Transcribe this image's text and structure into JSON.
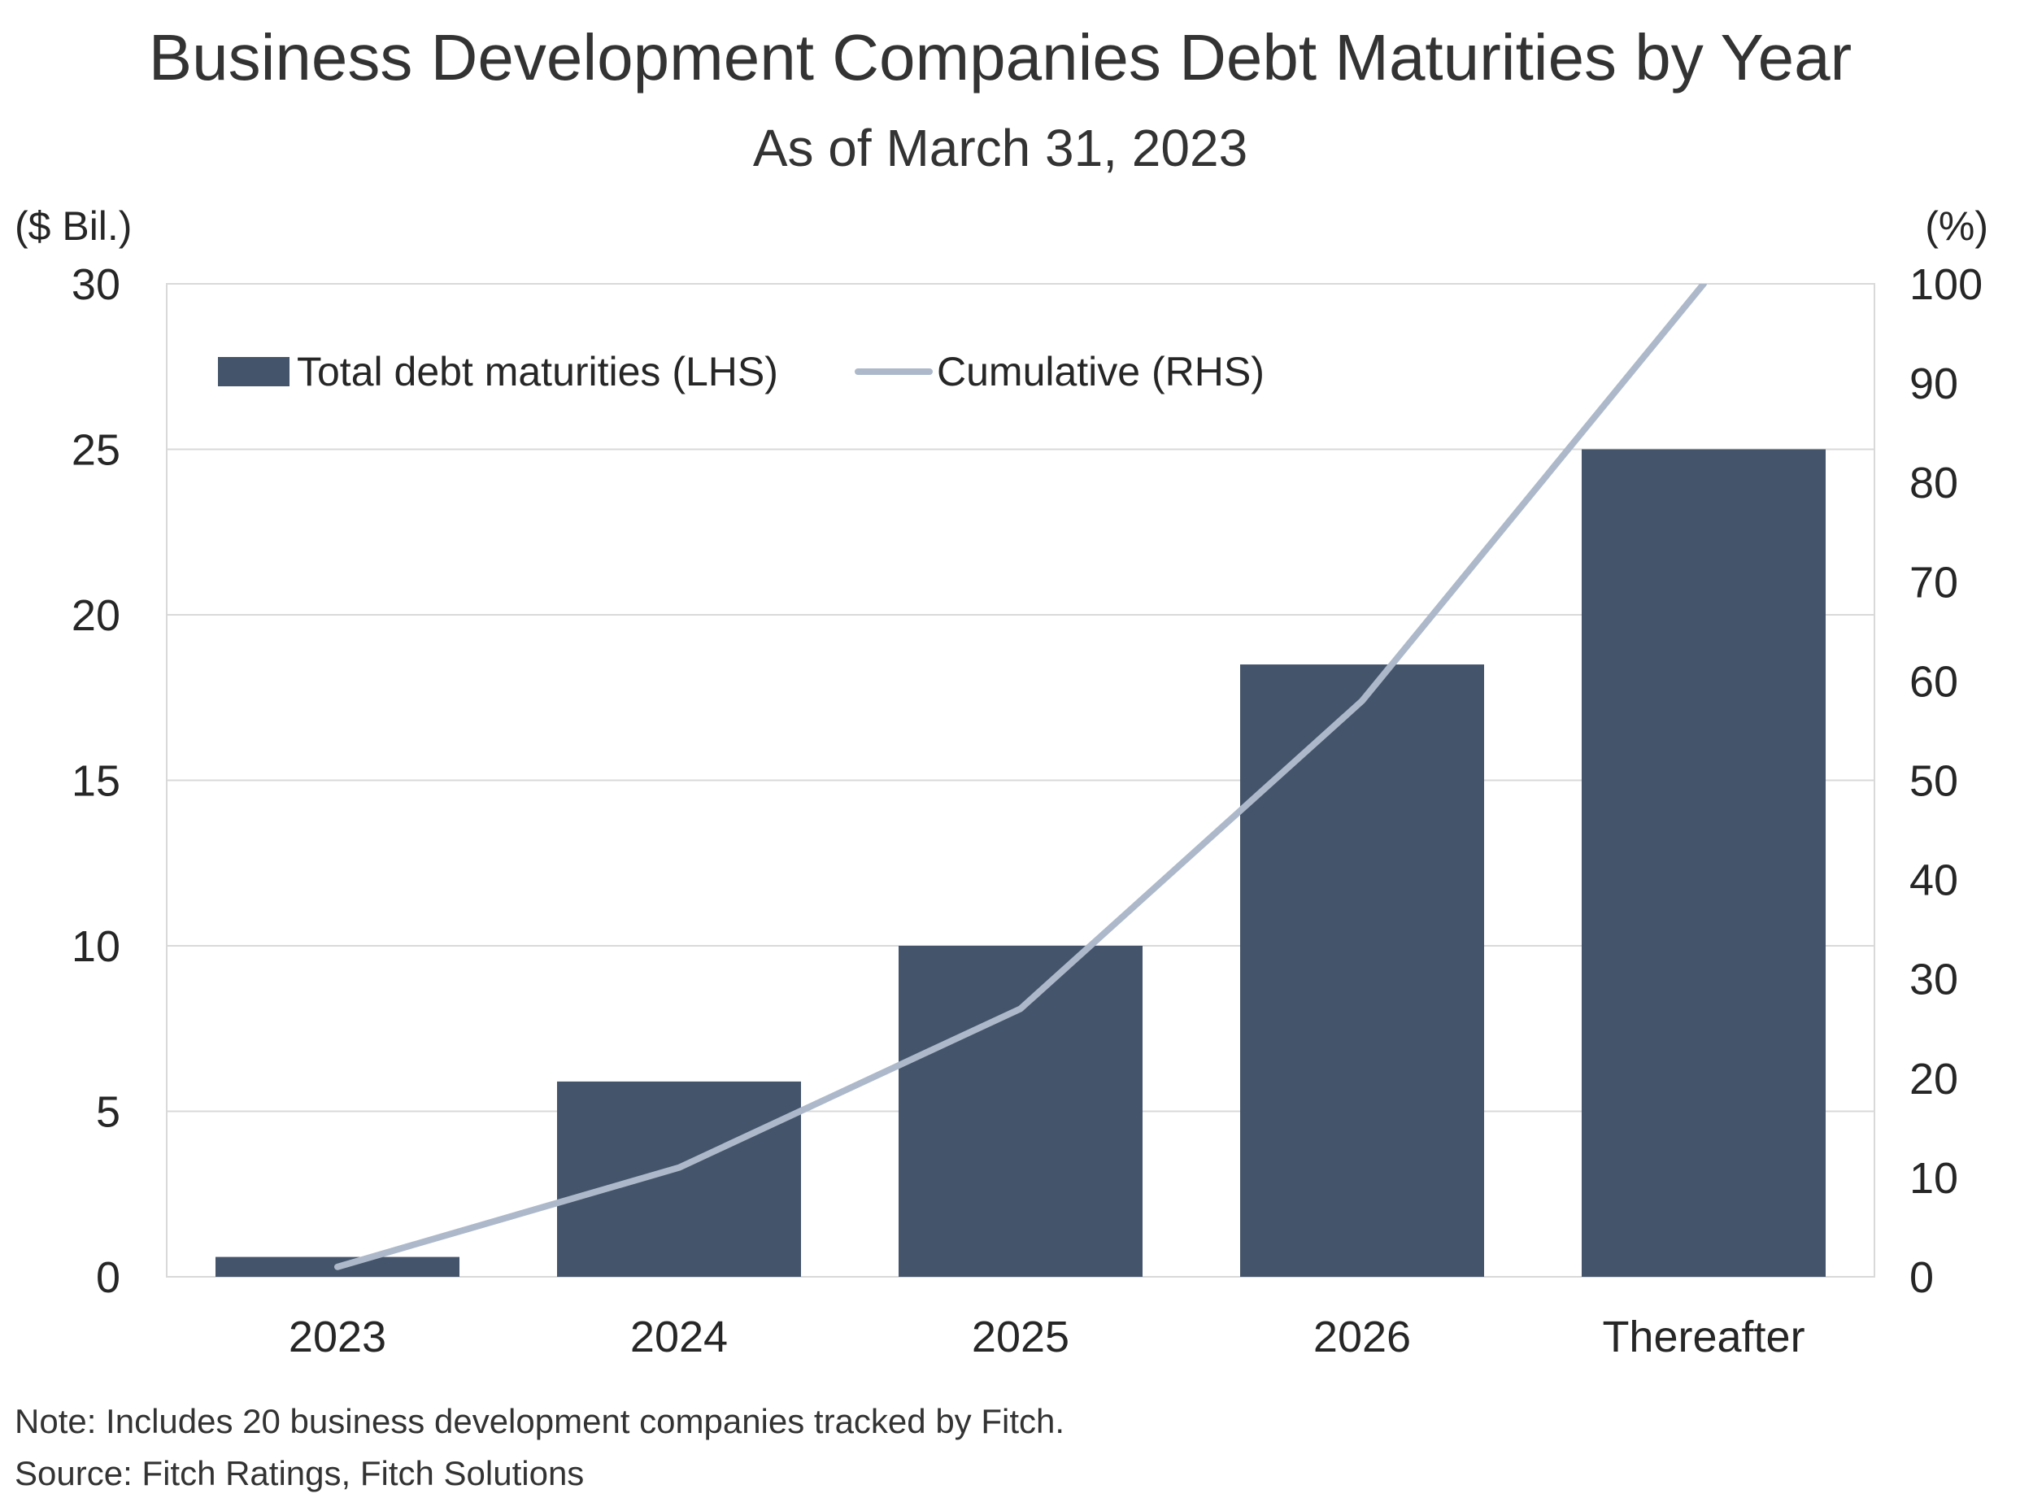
{
  "chart_data": {
    "type": "bar",
    "title": "Business Development Companies Debt Maturities by Year",
    "subtitle": "As of March 31, 2023",
    "y_left_unit": "($ Bil.)",
    "y_right_unit": "(%)",
    "categories": [
      "2023",
      "2024",
      "2025",
      "2026",
      "Thereafter"
    ],
    "series": [
      {
        "name": "Total debt maturities (LHS)",
        "type": "bar",
        "axis": "left",
        "color": "#44546a",
        "values": [
          0.6,
          5.9,
          10.0,
          18.5,
          25.0
        ]
      },
      {
        "name": "Cumulative (RHS)",
        "type": "line",
        "axis": "right",
        "color": "#adb9ca",
        "values": [
          1,
          11,
          27,
          58,
          100
        ]
      }
    ],
    "y_left": {
      "min": 0,
      "max": 30,
      "ticks": [
        "0",
        "5",
        "10",
        "15",
        "20",
        "25",
        "30"
      ]
    },
    "y_right": {
      "min": 0,
      "max": 100,
      "ticks": [
        "0",
        "10",
        "20",
        "30",
        "40",
        "50",
        "60",
        "70",
        "80",
        "90",
        "100"
      ]
    },
    "grid": "horizontal",
    "legend_position": "top-left"
  },
  "notes": {
    "note": "Note: Includes 20 business development companies tracked by Fitch.",
    "source": "Source: Fitch Ratings, Fitch Solutions"
  },
  "colors": {
    "bar": "#44546a",
    "line": "#adb9ca",
    "grid": "#d9d9d9",
    "frame": "#d9d9d9"
  }
}
